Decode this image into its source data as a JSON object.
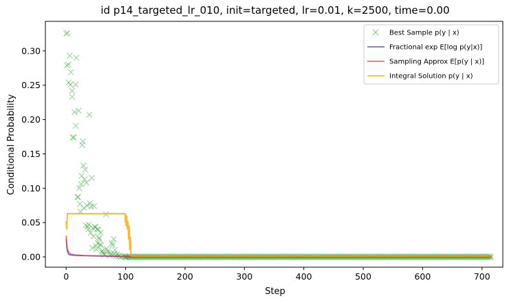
{
  "chart_data": {
    "type": "line",
    "title": "id p14_targeted_lr_010, init=targeted, lr=0.01, k=2500, time=0.00",
    "xlabel": "Step",
    "ylabel": "Conditional Probability",
    "xlim": [
      -35,
      735
    ],
    "ylim": [
      -0.015,
      0.343
    ],
    "xticks": [
      0,
      100,
      200,
      300,
      400,
      500,
      600,
      700
    ],
    "yticks": [
      0.0,
      0.05,
      0.1,
      0.15,
      0.2,
      0.25,
      0.3
    ],
    "grid": false,
    "legend_position": "top-right",
    "series": [
      {
        "name": "Best Sample p(y | x)",
        "kind": "scatter",
        "marker": "x",
        "color": "#2ca02c",
        "points": [
          [
            0,
            0.325
          ],
          [
            2,
            0.326
          ],
          [
            1,
            0.279
          ],
          [
            4,
            0.28
          ],
          [
            4,
            0.254
          ],
          [
            6,
            0.293
          ],
          [
            7,
            0.251
          ],
          [
            8,
            0.269
          ],
          [
            10,
            0.242
          ],
          [
            10,
            0.233
          ],
          [
            11,
            0.174
          ],
          [
            13,
            0.174
          ],
          [
            14,
            0.211
          ],
          [
            16,
            0.251
          ],
          [
            16,
            0.191
          ],
          [
            17,
            0.29
          ],
          [
            19,
            0.087
          ],
          [
            20,
            0.087
          ],
          [
            21,
            0.213
          ],
          [
            22,
            0.1
          ],
          [
            23,
            0.077
          ],
          [
            24,
            0.066
          ],
          [
            25,
            0.106
          ],
          [
            26,
            0.118
          ],
          [
            27,
            0.163
          ],
          [
            28,
            0.168
          ],
          [
            29,
            0.133
          ],
          [
            30,
            0.071
          ],
          [
            31,
            0.113
          ],
          [
            32,
            0.127
          ],
          [
            33,
            0.046
          ],
          [
            34,
            0.108
          ],
          [
            35,
            0.075
          ],
          [
            36,
            0.044
          ],
          [
            37,
            0.04
          ],
          [
            38,
            0.047
          ],
          [
            39,
            0.207
          ],
          [
            40,
            0.078
          ],
          [
            41,
            0.035
          ],
          [
            42,
            0.073
          ],
          [
            43,
            0.115
          ],
          [
            44,
            0.013
          ],
          [
            45,
            0.042
          ],
          [
            46,
            0.03
          ],
          [
            47,
            0.074
          ],
          [
            48,
            0.044
          ],
          [
            49,
            0.043
          ],
          [
            50,
            0.016
          ],
          [
            51,
            0.011
          ],
          [
            52,
            0.04
          ],
          [
            53,
            0.02
          ],
          [
            54,
            0.04
          ],
          [
            55,
            0.028
          ],
          [
            56,
            0.026
          ],
          [
            57,
            0.018
          ],
          [
            58,
            0.035
          ],
          [
            59,
            0.017
          ],
          [
            60,
            0.008
          ],
          [
            61,
            0.009
          ],
          [
            62,
            0.006
          ],
          [
            63,
            0.004
          ],
          [
            65,
            0.003
          ],
          [
            67,
            0.062
          ],
          [
            68,
            0.012
          ],
          [
            70,
            0.009
          ],
          [
            72,
            0.006
          ],
          [
            74,
            0.002
          ],
          [
            75,
            0.004
          ],
          [
            77,
            0.02
          ],
          [
            78,
            0.017
          ],
          [
            79,
            0.003
          ],
          [
            80,
            0.026
          ],
          [
            81,
            0.005
          ],
          [
            82,
            0.01
          ],
          [
            84,
            0.001
          ],
          [
            86,
            0.004
          ],
          [
            88,
            0.001
          ],
          [
            90,
            0.002
          ],
          [
            92,
            0.0
          ],
          [
            95,
            0.001
          ],
          [
            98,
            0.001
          ],
          [
            100,
            0.0
          ]
        ]
      },
      {
        "name": "Fractional exp E[log p(y|x)]",
        "kind": "line",
        "color": "#4040c8",
        "points": [
          [
            0,
            0.026
          ],
          [
            1,
            0.014
          ],
          [
            2,
            0.008
          ],
          [
            4,
            0.004
          ],
          [
            6,
            0.003
          ],
          [
            10,
            0.0025
          ],
          [
            20,
            0.002
          ],
          [
            40,
            0.0015
          ],
          [
            70,
            0.001
          ],
          [
            100,
            0.0005
          ],
          [
            110,
            0.0
          ],
          [
            716,
            0.0
          ]
        ]
      },
      {
        "name": "Sampling Approx E[p(y | x)]",
        "kind": "line",
        "color": "#ef4040",
        "points": [
          [
            0,
            0.031
          ],
          [
            1,
            0.02
          ],
          [
            2,
            0.012
          ],
          [
            4,
            0.007
          ],
          [
            8,
            0.004
          ],
          [
            15,
            0.003
          ],
          [
            30,
            0.002
          ],
          [
            60,
            0.0015
          ],
          [
            100,
            0.001
          ],
          [
            110,
            0.0
          ],
          [
            716,
            0.0
          ]
        ]
      },
      {
        "name": "Integral Solution p(y | x)",
        "kind": "line",
        "color": "#ffa500",
        "points": [
          [
            0,
            0.052
          ],
          [
            1,
            0.04
          ],
          [
            2,
            0.063
          ],
          [
            20,
            0.063
          ],
          [
            40,
            0.063
          ],
          [
            60,
            0.063
          ],
          [
            80,
            0.063
          ],
          [
            99,
            0.063
          ],
          [
            99.5,
            0.05
          ],
          [
            100,
            0.062
          ],
          [
            101,
            0.045
          ],
          [
            102,
            0.06
          ],
          [
            103,
            0.04
          ],
          [
            104,
            0.052
          ],
          [
            105,
            0.025
          ],
          [
            106,
            0.045
          ],
          [
            107,
            0.01
          ],
          [
            108,
            0.03
          ],
          [
            109,
            0.003
          ],
          [
            110,
            0.001
          ],
          [
            716,
            0.001
          ]
        ]
      }
    ],
    "dense_markers": {
      "comment_free": true,
      "from": 100,
      "to": 716,
      "step": 2.5,
      "y": [
        0.001,
        -0.001
      ],
      "color": "#2ca02c"
    }
  }
}
